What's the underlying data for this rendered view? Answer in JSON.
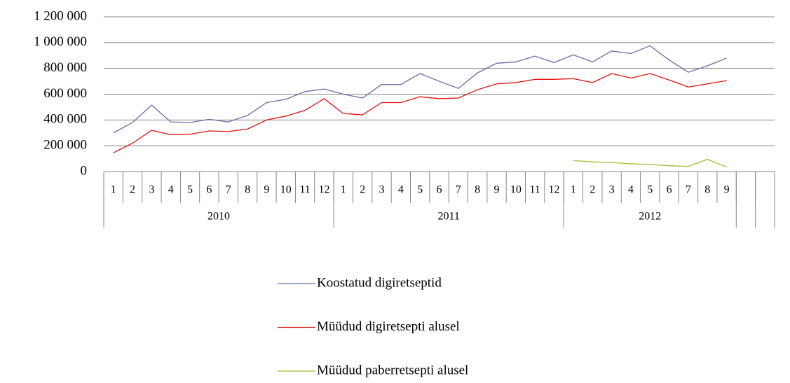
{
  "chart_data": {
    "type": "line",
    "categories": [
      "1",
      "2",
      "3",
      "4",
      "5",
      "6",
      "7",
      "8",
      "9",
      "10",
      "11",
      "12",
      "1",
      "2",
      "3",
      "4",
      "5",
      "6",
      "7",
      "8",
      "9",
      "10",
      "11",
      "12",
      "1",
      "2",
      "3",
      "4",
      "5",
      "6",
      "7",
      "8",
      "9",
      null,
      null
    ],
    "category_groups": [
      {
        "name": "2010",
        "size": 12
      },
      {
        "name": "2011",
        "size": 12
      },
      {
        "name": "2012",
        "size": 9
      },
      {
        "name": null,
        "size": 1
      },
      {
        "name": null,
        "size": 1
      }
    ],
    "series": [
      {
        "name": "Koostatud digiretseptid",
        "color": "#6b6ba8",
        "values": [
          300000,
          380000,
          515000,
          385000,
          380000,
          405000,
          385000,
          435000,
          535000,
          560000,
          620000,
          640000,
          600000,
          570000,
          675000,
          675000,
          760000,
          700000,
          645000,
          765000,
          840000,
          850000,
          895000,
          845000,
          905000,
          850000,
          935000,
          915000,
          975000,
          865000,
          770000,
          820000,
          880000,
          null,
          null
        ]
      },
      {
        "name": "Müüdud digiretsepti alusel",
        "color": "#e01010",
        "values": [
          145000,
          220000,
          320000,
          285000,
          290000,
          315000,
          310000,
          330000,
          400000,
          430000,
          475000,
          565000,
          450000,
          440000,
          535000,
          535000,
          580000,
          565000,
          570000,
          635000,
          680000,
          690000,
          715000,
          715000,
          720000,
          690000,
          760000,
          725000,
          760000,
          710000,
          655000,
          680000,
          705000,
          null,
          null
        ]
      },
      {
        "name": "Müüdud paberretsepti alusel",
        "color": "#a0c030",
        "values": [
          null,
          null,
          null,
          null,
          null,
          null,
          null,
          null,
          null,
          null,
          null,
          null,
          null,
          null,
          null,
          null,
          null,
          null,
          null,
          null,
          null,
          null,
          null,
          null,
          85000,
          75000,
          70000,
          60000,
          55000,
          45000,
          40000,
          95000,
          35000,
          null,
          null
        ]
      }
    ],
    "ylim": [
      0,
      1200000
    ],
    "yticks": [
      0,
      {
        "value": 200000,
        "label": "200 000"
      },
      {
        "value": 400000,
        "label": "400 000"
      },
      {
        "value": 600000,
        "label": "600 000"
      },
      {
        "value": 800000,
        "label": "800 000"
      },
      {
        "value": 1000000,
        "label": "1 000 000"
      },
      {
        "value": 1200000,
        "label": "1 200 000"
      }
    ],
    "grid": true,
    "legend": "bottom"
  }
}
